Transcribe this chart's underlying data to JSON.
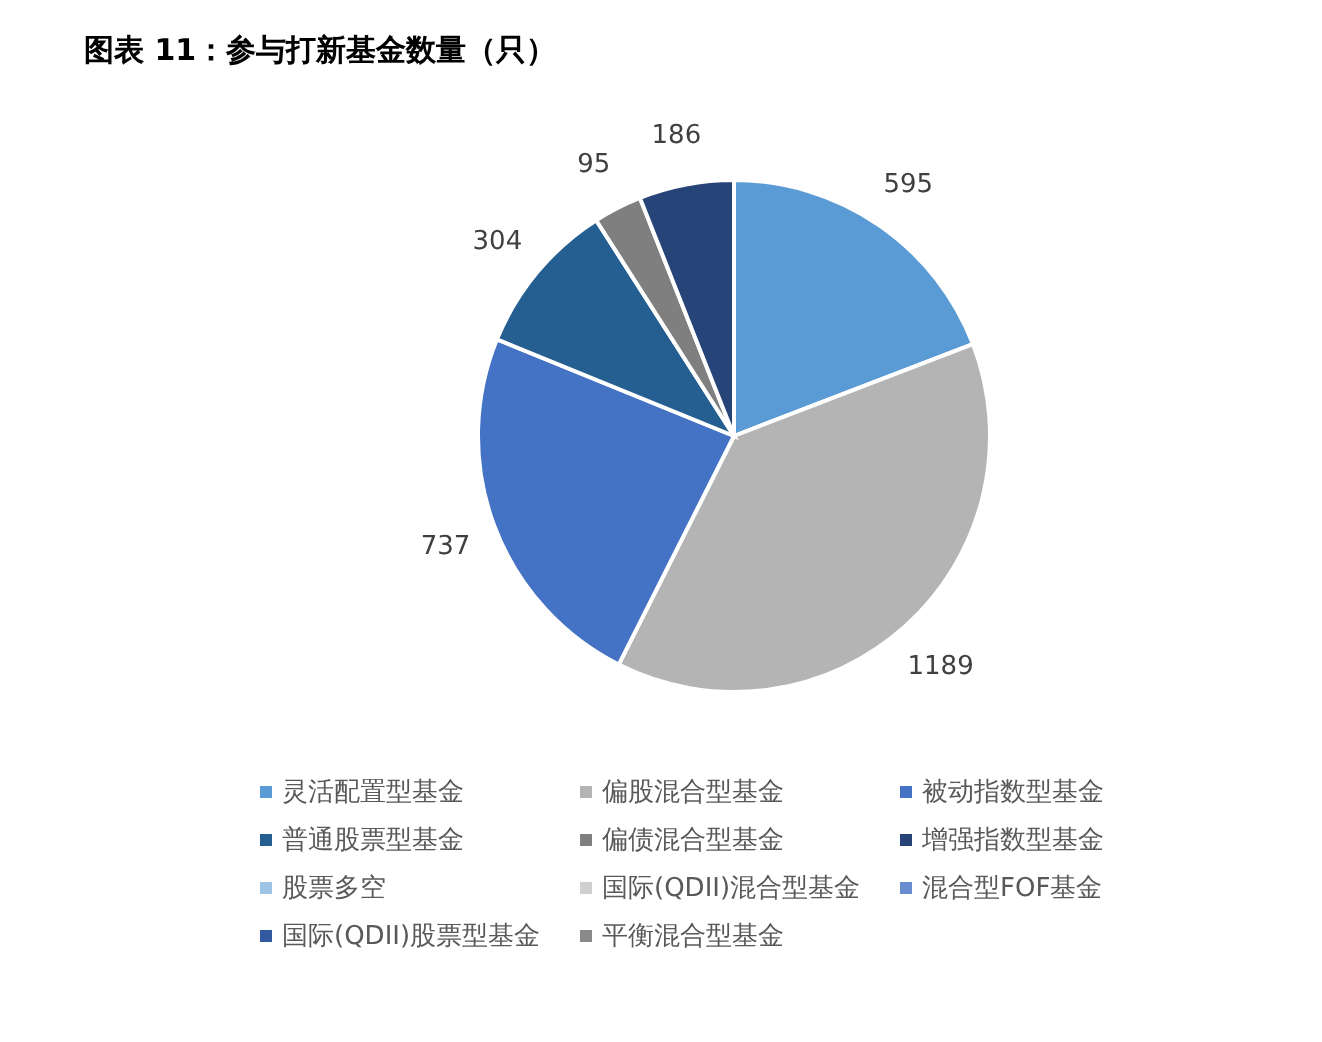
{
  "chart_data": {
    "type": "pie",
    "title": "图表 11：参与打新基金数量（只）",
    "categories": [
      "灵活配置型基金",
      "偏股混合型基金",
      "被动指数型基金",
      "普通股票型基金",
      "偏债混合型基金",
      "增强指数型基金",
      "股票多空",
      "国际(QDII)混合型基金",
      "混合型FOF基金",
      "国际(QDII)股票型基金",
      "平衡混合型基金"
    ],
    "values": [
      595,
      1189,
      737,
      304,
      95,
      186,
      null,
      null,
      null,
      null,
      null
    ],
    "colors": [
      "#5b9bd5",
      "#b4b4b4",
      "#4472c4",
      "#255e91",
      "#7f7f7f",
      "#264478",
      "#9dc3e6",
      "#d0d0d0",
      "#698ed0",
      "#335aa1",
      "#8a8a8a"
    ],
    "data_labels": true,
    "legend": "bottom"
  }
}
